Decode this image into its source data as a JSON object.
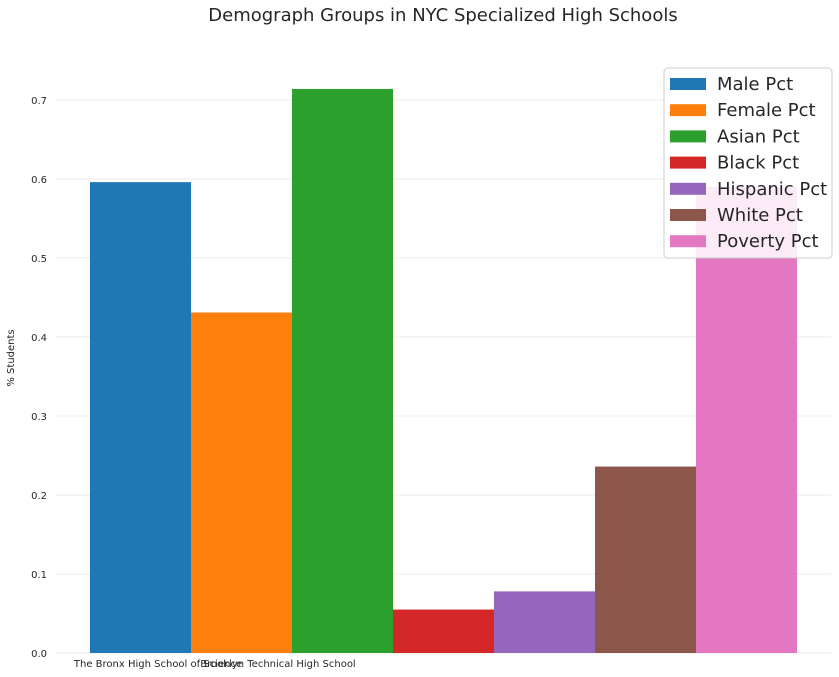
{
  "chart_data": {
    "type": "bar",
    "title": "Demograph Groups in NYC Specialized High Schools",
    "xlabel": "",
    "ylabel": "% Students",
    "ylim": [
      0,
      0.7
    ],
    "yticks": [
      "0.0",
      "0.1",
      "0.2",
      "0.3",
      "0.4",
      "0.5",
      "0.6",
      "0.7"
    ],
    "x_tick_labels": [
      "The Bronx High School of Science",
      "Brooklyn Technical High School"
    ],
    "grid": true,
    "legend_position": "top-right",
    "series": [
      {
        "name": "Male Pct",
        "value": 0.596,
        "color": "#1f77b4"
      },
      {
        "name": "Female Pct",
        "value": 0.431,
        "color": "#ff7f0e"
      },
      {
        "name": "Asian Pct",
        "value": 0.714,
        "color": "#2ca02c"
      },
      {
        "name": "Black Pct",
        "value": 0.055,
        "color": "#d62728"
      },
      {
        "name": "Hispanic Pct",
        "value": 0.078,
        "color": "#9467bd"
      },
      {
        "name": "White Pct",
        "value": 0.236,
        "color": "#8c564b"
      },
      {
        "name": "Poverty Pct",
        "value": 0.59,
        "color": "#e377c2"
      }
    ]
  }
}
